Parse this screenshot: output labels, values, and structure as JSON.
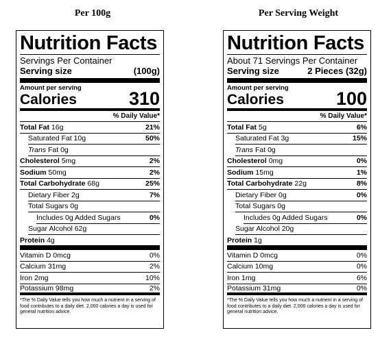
{
  "headings": {
    "left": "Per 100g",
    "right": "Per Serving Weight"
  },
  "labels": [
    {
      "title": "Nutrition Facts",
      "servings": "Servings Per Container",
      "serving_size_label": "Serving size",
      "serving_size_value": "(100g)",
      "amount_per_serving": "Amount per serving",
      "calories_label": "Calories",
      "calories_value": "310",
      "dv_header": "% Daily Value*",
      "total_fat": {
        "name": "Total Fat",
        "amount": "16g",
        "pct": "21%"
      },
      "saturated_fat": {
        "name": "Saturated Fat",
        "amount": "10g",
        "pct": "50%"
      },
      "trans_fat": {
        "name": "Trans",
        "rest": "Fat",
        "amount": "0g"
      },
      "cholesterol": {
        "name": "Cholesterol",
        "amount": "5mg",
        "pct": "2%"
      },
      "sodium": {
        "name": "Sodium",
        "amount": "50mg",
        "pct": "2%"
      },
      "total_carb": {
        "name": "Total Carbohydrate",
        "amount": "68g",
        "pct": "25%"
      },
      "dietary_fiber": {
        "name": "Dietary Fiber",
        "amount": "2g",
        "pct": "7%"
      },
      "total_sugars": {
        "name": "Total Sugars",
        "amount": "0g"
      },
      "added_sugars": {
        "text": "Includes 0g Added Sugars",
        "pct": "0%"
      },
      "sugar_alcohol": {
        "name": "Sugar Alcohol",
        "amount": "62g"
      },
      "protein": {
        "name": "Protein",
        "amount": "4g"
      },
      "vitamin_d": {
        "text": "Vitamin D 0mcg",
        "pct": "0%"
      },
      "calcium": {
        "text": "Calcium 31mg",
        "pct": "2%"
      },
      "iron": {
        "text": "Iron 2mg",
        "pct": "10%"
      },
      "potassium": {
        "text": "Potassium 98mg",
        "pct": "2%"
      },
      "footnote": "*The % Daily Value tells you how much a nutrient in a serving of food contributes to a daily diet. 2,000 calories a day is used for general nutrition advice."
    },
    {
      "title": "Nutrition Facts",
      "servings": "About 71 Servings Per Container",
      "serving_size_label": "Serving size",
      "serving_size_value": "2 Pieces (32g)",
      "amount_per_serving": "Amount per serving",
      "calories_label": "Calories",
      "calories_value": "100",
      "dv_header": "% Daily Value*",
      "total_fat": {
        "name": "Total Fat",
        "amount": "5g",
        "pct": "6%"
      },
      "saturated_fat": {
        "name": "Saturated Fat",
        "amount": "3g",
        "pct": "15%"
      },
      "trans_fat": {
        "name": "Trans",
        "rest": "Fat",
        "amount": "0g"
      },
      "cholesterol": {
        "name": "Cholesterol",
        "amount": "0mg",
        "pct": "0%"
      },
      "sodium": {
        "name": "Sodium",
        "amount": "15mg",
        "pct": "1%"
      },
      "total_carb": {
        "name": "Total Carbohydrate",
        "amount": "22g",
        "pct": "8%"
      },
      "dietary_fiber": {
        "name": "Dietary Fiber",
        "amount": "0g",
        "pct": "0%"
      },
      "total_sugars": {
        "name": "Total Sugars",
        "amount": "0g"
      },
      "added_sugars": {
        "text": "Includes 0g Added Sugars",
        "pct": "0%"
      },
      "sugar_alcohol": {
        "name": "Sugar Alcohol",
        "amount": "20g"
      },
      "protein": {
        "name": "Protein",
        "amount": "1g"
      },
      "vitamin_d": {
        "text": "Vitamin D 0mcg",
        "pct": "0%"
      },
      "calcium": {
        "text": "Calcium 10mg",
        "pct": "0%"
      },
      "iron": {
        "text": "Iron 1mg",
        "pct": "6%"
      },
      "potassium": {
        "text": "Potassium 31mg",
        "pct": "0%"
      },
      "footnote": "*The % Daily Value tells you how much a nutrient in a serving of food contributes to a daily diet. 2,000 calories a day is used for general nutrition advice."
    }
  ]
}
